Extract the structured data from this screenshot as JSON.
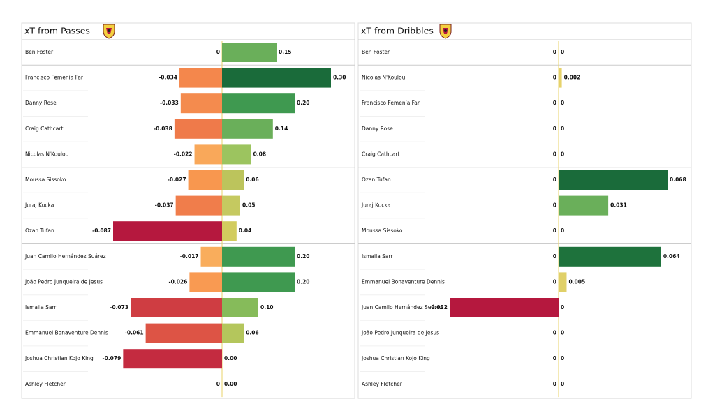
{
  "chart_data": [
    {
      "type": "bar",
      "title": "xT from Passes",
      "categories": [
        "Ben Foster",
        "Francisco Femenía Far",
        "Danny Rose",
        "Craig Cathcart",
        "Nicolas N'Koulou",
        "Moussa Sissoko",
        "Juraj Kucka",
        "Ozan Tufan",
        "Juan Camilo Hernández Suárez",
        "João Pedro Junqueira de Jesus",
        "Ismaila Sarr",
        "Emmanuel Bonaventure Dennis",
        "Joshua Christian Kojo King",
        "Ashley Fletcher"
      ],
      "series": [
        {
          "values": [
            0,
            -0.034,
            -0.033,
            -0.038,
            -0.022,
            -0.027,
            -0.037,
            -0.087,
            -0.017,
            -0.026,
            -0.073,
            -0.061,
            -0.079,
            0
          ],
          "xlim": [
            -0.087,
            0
          ],
          "colors": [
            "#f4c06a",
            "#f4874c",
            "#f48b4e",
            "#ef7a4a",
            "#f9a85a",
            "#f8974f",
            "#f07d4b",
            "#b5183e",
            "#f9ad5c",
            "#f99a52",
            "#cf3d42",
            "#dd5445",
            "#c42b40",
            "#f4c06a"
          ]
        },
        {
          "values": [
            0.15,
            0.3,
            0.2,
            0.14,
            0.08,
            0.06,
            0.05,
            0.04,
            0.2,
            0.2,
            0.1,
            0.06,
            0,
            0
          ],
          "value_labels": [
            "0.15",
            "0.30",
            "0.20",
            "0.14",
            "0.08",
            "0.06",
            "0.05",
            "0.04",
            "0.20",
            "0.20",
            "0.10",
            "0.06",
            "0.00",
            "0.00"
          ],
          "xlim": [
            0,
            0.3
          ],
          "colors": [
            "#6aaf5a",
            "#1a6b3a",
            "#3f9950",
            "#6aaf5a",
            "#9cc45f",
            "#bcc45c",
            "#c5c960",
            "#d2cc5e",
            "#3f9950",
            "#3f9950",
            "#86bb5a",
            "#b4c65c",
            "#e8d36a",
            "#e8d36a"
          ]
        }
      ]
    },
    {
      "type": "bar",
      "title": "xT from Dribbles",
      "categories": [
        "Ben Foster",
        "Nicolas N'Koulou",
        "Francisco Femenía Far",
        "Danny Rose",
        "Craig Cathcart",
        "Ozan Tufan",
        "Juraj Kucka",
        "Moussa Sissoko",
        "Ismaila Sarr",
        "Emmanuel Bonaventure Dennis",
        "Juan Camilo Hernández Suárez",
        "João Pedro Junqueira de Jesus",
        "Joshua Christian Kojo King",
        "Ashley Fletcher"
      ],
      "series": [
        {
          "values": [
            0,
            0,
            0,
            0,
            0,
            0,
            0,
            0,
            0,
            0,
            -0.022,
            0,
            0,
            0
          ],
          "xlim": [
            -0.022,
            0
          ],
          "colors": [
            "#f4c06a",
            "#f4c06a",
            "#f4c06a",
            "#f4c06a",
            "#f4c06a",
            "#f4c06a",
            "#f4c06a",
            "#f4c06a",
            "#f4c06a",
            "#f4c06a",
            "#b5183e",
            "#f4c06a",
            "#f4c06a",
            "#f4c06a"
          ]
        },
        {
          "values": [
            0,
            0.002,
            0,
            0,
            0,
            0.068,
            0.031,
            0,
            0.064,
            0.005,
            0,
            0,
            0,
            0
          ],
          "xlim": [
            0,
            0.068
          ],
          "colors": [
            "#e8d36a",
            "#e6d26a",
            "#e8d36a",
            "#e8d36a",
            "#e8d36a",
            "#1a6b3a",
            "#6aaf5a",
            "#e8d36a",
            "#1e723c",
            "#e0d068",
            "#e8d36a",
            "#e8d36a",
            "#e8d36a",
            "#e8d36a"
          ]
        }
      ]
    }
  ]
}
